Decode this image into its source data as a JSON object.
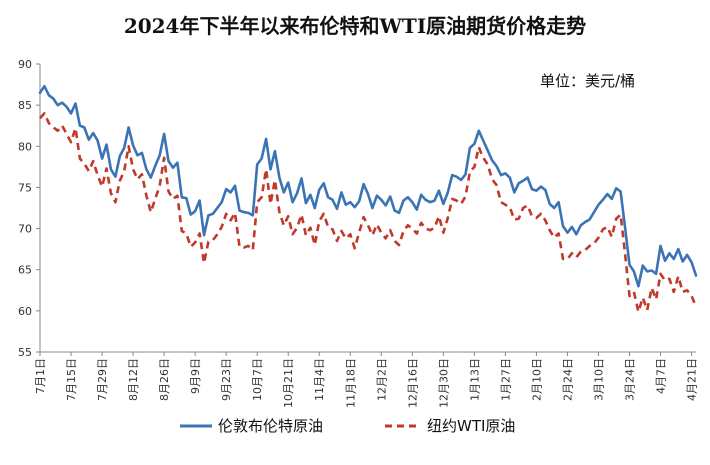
{
  "chart_data": {
    "type": "line",
    "title": "2024年下半年以来布伦特和WTI原油期货价格走势",
    "unit_label": "单位：美元/桶",
    "ylim": [
      55,
      90
    ],
    "yticks": [
      "55",
      "60",
      "65",
      "70",
      "75",
      "80",
      "85",
      "90"
    ],
    "xticks": [
      "7月1日",
      "7月15日",
      "7月29日",
      "8月12日",
      "8月26日",
      "9月9日",
      "9月23日",
      "10月7日",
      "10月21日",
      "11月4日",
      "11月18日",
      "12月2日",
      "12月16日",
      "12月30日",
      "1月13日",
      "1月27日",
      "2月10日",
      "2月24日",
      "3月10日",
      "3月24日",
      "4月7日",
      "4月21日"
    ],
    "grid": false,
    "legend_position": "bottom",
    "series": [
      {
        "name": "伦敦布伦特原油",
        "color": "#3B73B5",
        "style": "solid",
        "values": [
          86.5,
          87.3,
          86.2,
          85.8,
          85.0,
          85.3,
          84.8,
          84.0,
          85.2,
          82.5,
          82.3,
          80.8,
          81.6,
          80.7,
          78.5,
          80.2,
          77.2,
          76.3,
          78.8,
          79.8,
          82.3,
          80.1,
          78.9,
          79.2,
          77.2,
          76.2,
          77.6,
          78.9,
          81.5,
          78.2,
          77.4,
          78.0,
          73.8,
          73.7,
          71.7,
          72.1,
          73.4,
          69.2,
          71.6,
          71.8,
          72.5,
          73.2,
          74.8,
          74.4,
          75.2,
          72.2,
          72.0,
          71.9,
          71.6,
          77.8,
          78.5,
          80.9,
          77.2,
          79.4,
          76.2,
          74.4,
          75.6,
          73.2,
          74.3,
          76.1,
          73.1,
          74.1,
          72.5,
          74.7,
          75.5,
          73.8,
          73.5,
          72.4,
          74.4,
          72.9,
          73.2,
          72.6,
          73.3,
          75.4,
          74.2,
          72.5,
          74.0,
          73.5,
          72.8,
          73.9,
          72.2,
          71.9,
          73.4,
          73.8,
          73.2,
          72.3,
          74.1,
          73.5,
          73.2,
          73.4,
          74.6,
          73.0,
          74.4,
          76.5,
          76.3,
          75.9,
          76.6,
          79.8,
          80.3,
          81.9,
          80.7,
          79.5,
          78.3,
          77.6,
          76.5,
          76.7,
          76.2,
          74.4,
          75.5,
          75.8,
          76.2,
          74.8,
          74.6,
          75.1,
          74.7,
          73.0,
          72.5,
          73.2,
          70.3,
          69.5,
          70.2,
          69.3,
          70.4,
          70.8,
          71.1,
          72.0,
          72.9,
          73.5,
          74.2,
          73.6,
          74.9,
          74.5,
          70.1,
          65.6,
          64.8,
          63.0,
          65.5,
          64.8,
          64.9,
          64.5,
          67.9,
          66.1,
          67.0,
          66.3,
          67.5,
          66.0,
          66.8,
          65.9,
          64.3
        ]
      },
      {
        "name": "纽约WTI原油",
        "color": "#C0392B",
        "style": "dashed",
        "values": [
          83.4,
          84.0,
          82.8,
          82.3,
          81.9,
          82.5,
          81.5,
          80.5,
          82.2,
          78.5,
          77.9,
          77.0,
          78.2,
          76.5,
          75.1,
          77.3,
          74.3,
          73.2,
          75.8,
          77.0,
          80.0,
          77.2,
          76.0,
          76.6,
          74.0,
          72.0,
          73.6,
          75.2,
          78.6,
          74.5,
          73.6,
          74.0,
          69.7,
          69.4,
          67.8,
          68.3,
          69.4,
          65.8,
          68.4,
          68.6,
          69.3,
          70.2,
          71.8,
          71.0,
          71.9,
          67.8,
          67.7,
          67.9,
          67.4,
          73.2,
          73.8,
          77.2,
          73.0,
          75.9,
          72.0,
          70.4,
          71.5,
          69.3,
          70.1,
          71.7,
          69.2,
          70.1,
          68.0,
          70.9,
          71.8,
          70.2,
          69.9,
          68.5,
          69.7,
          68.8,
          69.3,
          67.6,
          69.5,
          71.4,
          70.4,
          69.2,
          70.5,
          69.5,
          68.8,
          69.8,
          68.5,
          68.0,
          69.7,
          70.4,
          70.0,
          69.4,
          70.7,
          70.0,
          69.8,
          70.1,
          71.5,
          69.5,
          71.3,
          73.6,
          73.4,
          73.0,
          73.9,
          76.9,
          77.5,
          79.9,
          78.6,
          77.8,
          76.0,
          75.3,
          73.2,
          72.9,
          72.6,
          71.1,
          71.2,
          72.5,
          72.8,
          71.5,
          71.3,
          71.8,
          71.0,
          69.8,
          68.9,
          69.4,
          66.3,
          66.3,
          67.0,
          66.5,
          67.2,
          67.4,
          67.9,
          68.2,
          68.9,
          69.9,
          70.2,
          69.0,
          71.2,
          71.7,
          66.9,
          61.8,
          62.3,
          59.9,
          61.6,
          60.1,
          62.8,
          61.4,
          64.5,
          63.7,
          63.9,
          62.3,
          64.2,
          62.3,
          62.5,
          61.8,
          60.5
        ]
      }
    ]
  }
}
